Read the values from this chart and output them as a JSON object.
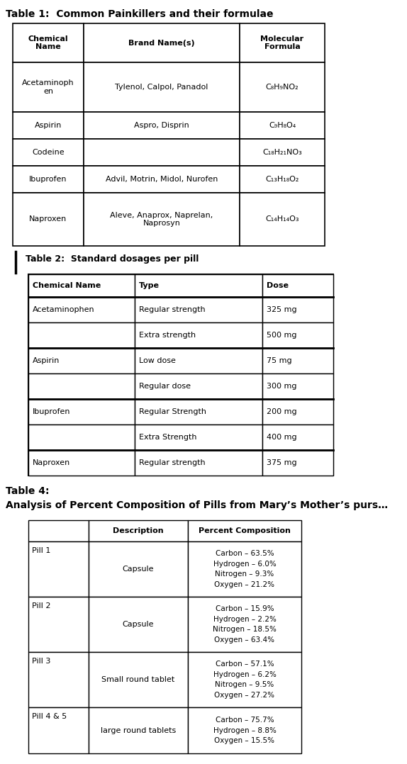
{
  "title1": "Table 1:  Common Painkillers and their formulae",
  "table1_headers": [
    "Chemical\nName",
    "Brand Name(s)",
    "Molecular\nFormula"
  ],
  "table1_rows": [
    [
      "Acetaminoph\nen",
      "Tylenol, Calpol, Panadol",
      "C₈H₉NO₂"
    ],
    [
      "Aspirin",
      "Aspro, Disprin",
      "C₉H₈O₄"
    ],
    [
      "Codeine",
      "",
      "C₁₈H₂₁NO₃"
    ],
    [
      "Ibuprofen",
      "Advil, Motrin, Midol, Nurofen",
      "C₁₃H₁₈O₂"
    ],
    [
      "Naproxen",
      "Aleve, Anaprox, Naprelan,\nNaprosyn",
      "C₁₄H₁₄O₃"
    ]
  ],
  "title2": "Table 2:  Standard dosages per pill",
  "table2_headers": [
    "Chemical Name",
    "Type",
    "Dose"
  ],
  "table2_rows": [
    [
      "Acetaminophen",
      "Regular strength",
      "325 mg"
    ],
    [
      "",
      "Extra strength",
      "500 mg"
    ],
    [
      "Aspirin",
      "Low dose",
      "75 mg"
    ],
    [
      "",
      "Regular dose",
      "300 mg"
    ],
    [
      "Ibuprofen",
      "Regular Strength",
      "200 mg"
    ],
    [
      "",
      "Extra Strength",
      "400 mg"
    ],
    [
      "Naproxen",
      "Regular strength",
      "375 mg"
    ]
  ],
  "title4a": "Table 4:",
  "title4b": "Analysis of Percent Composition of Pills from Mary’s Mother’s purs…",
  "table4_headers": [
    "",
    "Description",
    "Percent Composition"
  ],
  "table4_rows": [
    [
      "Pill 1",
      "Capsule",
      "Carbon – 63.5%\nHydrogen – 6.0%\nNitrogen – 9.3%\nOxygen – 21.2%"
    ],
    [
      "Pill 2",
      "Capsule",
      "Carbon – 15.9%\nHydrogen – 2.2%\nNitrogen – 18.5%\nOxygen – 63.4%"
    ],
    [
      "Pill 3",
      "Small round tablet",
      "Carbon – 57.1%\nHydrogen – 6.2%\nNitrogen – 9.5%\nOxygen – 27.2%"
    ],
    [
      "Pill 4 & 5",
      "large round tablets",
      "Carbon – 75.7%\nHydrogen – 8.8%\nOxygen – 15.5%"
    ]
  ],
  "bg_color": "#ffffff"
}
